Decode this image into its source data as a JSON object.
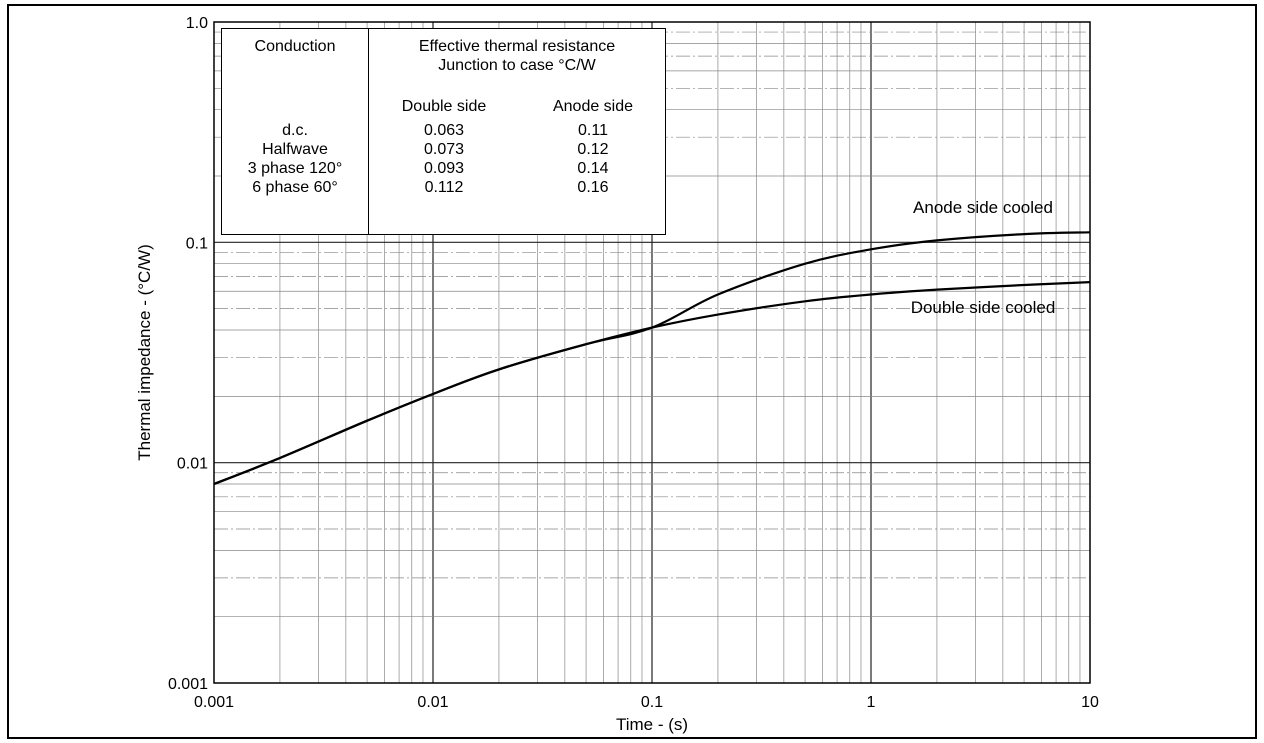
{
  "chart_data": {
    "type": "line",
    "x_scale": "log",
    "y_scale": "log",
    "xlim": [
      0.001,
      10
    ],
    "ylim": [
      0.001,
      1.0
    ],
    "xlabel": "Time - (s)",
    "ylabel": "Thermal impedance - (°C/W)",
    "x_ticks": [
      "0.001",
      "0.01",
      "0.1",
      "1",
      "10"
    ],
    "y_ticks": [
      "0.001",
      "0.01",
      "0.1",
      "1.0"
    ],
    "grid": true,
    "series": [
      {
        "name": "Anode side cooled",
        "x": [
          0.001,
          0.002,
          0.005,
          0.01,
          0.02,
          0.05,
          0.1,
          0.2,
          0.5,
          1,
          2,
          5,
          10
        ],
        "y": [
          0.008,
          0.0105,
          0.0155,
          0.0205,
          0.0265,
          0.0345,
          0.041,
          0.058,
          0.08,
          0.093,
          0.102,
          0.109,
          0.111
        ]
      },
      {
        "name": "Double side cooled",
        "x": [
          0.001,
          0.002,
          0.005,
          0.01,
          0.02,
          0.05,
          0.1,
          0.2,
          0.5,
          1,
          2,
          5,
          10
        ],
        "y": [
          0.008,
          0.0105,
          0.0155,
          0.0205,
          0.0265,
          0.0345,
          0.041,
          0.047,
          0.054,
          0.058,
          0.061,
          0.064,
          0.066
        ]
      }
    ],
    "table": {
      "header_conduction": "Conduction",
      "header_resistance_line1": "Effective thermal resistance",
      "header_resistance_line2": "Junction to case °C/W",
      "col_double": "Double side",
      "col_anode": "Anode side",
      "rows": [
        {
          "conduction": "d.c.",
          "double": "0.063",
          "anode": "0.11"
        },
        {
          "conduction": "Halfwave",
          "double": "0.073",
          "anode": "0.12"
        },
        {
          "conduction": "3 phase 120°",
          "double": "0.093",
          "anode": "0.14"
        },
        {
          "conduction": "6 phase 60°",
          "double": "0.112",
          "anode": "0.16"
        }
      ]
    }
  }
}
